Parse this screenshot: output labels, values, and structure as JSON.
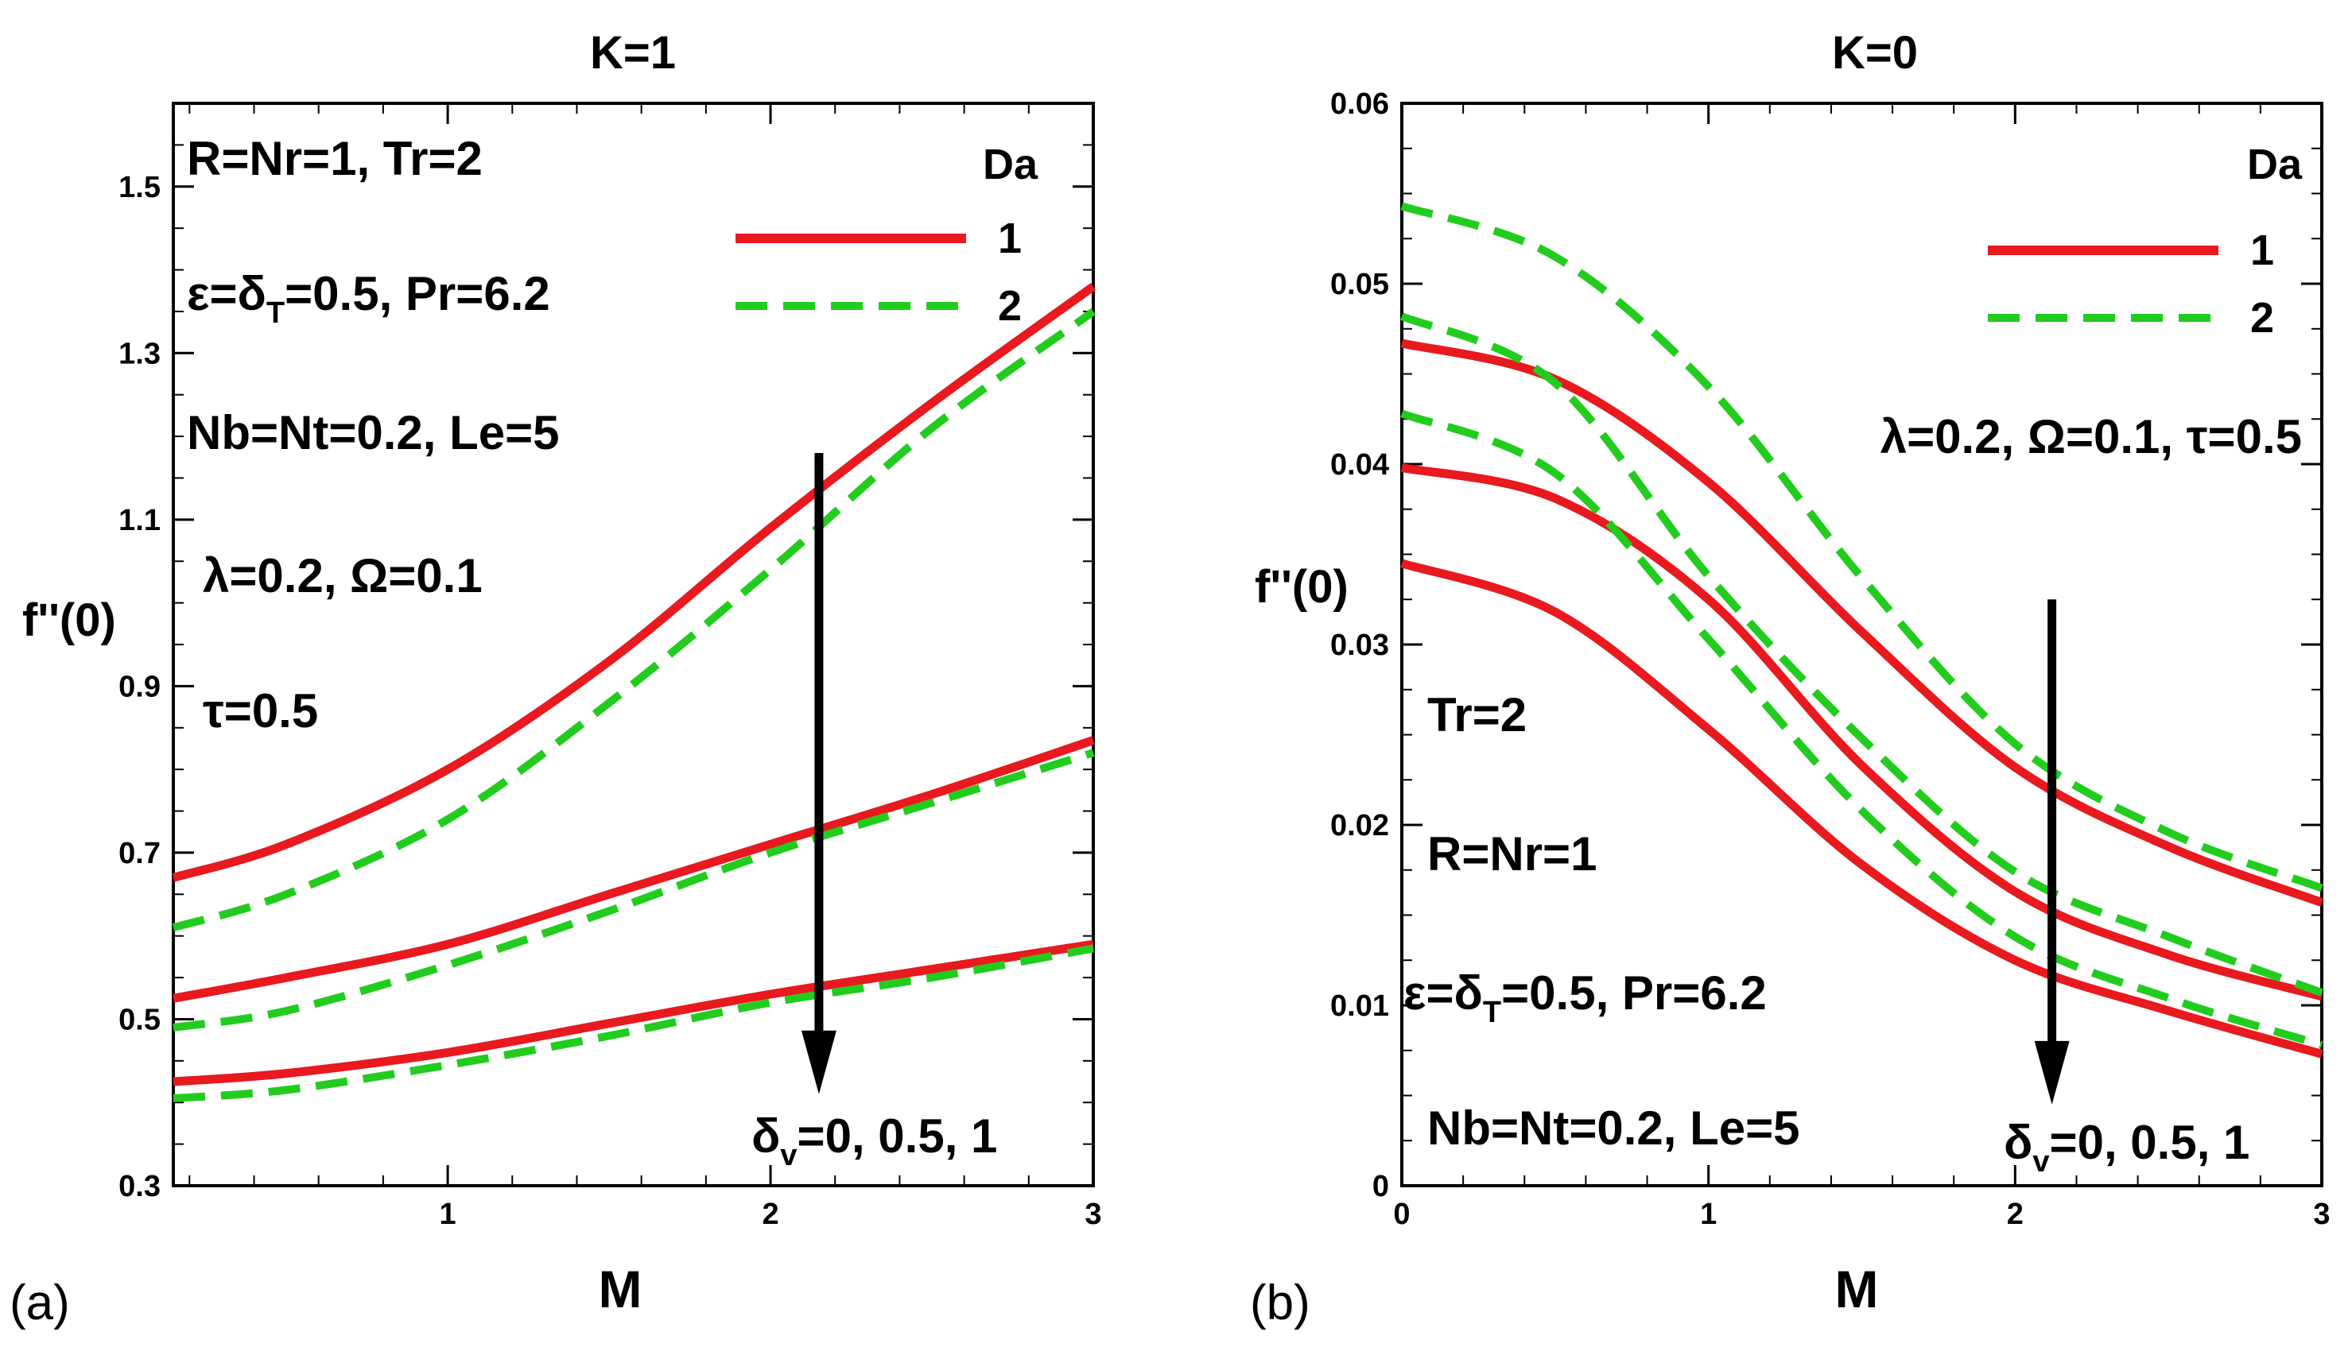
{
  "chart_data": [
    {
      "id": "a",
      "type": "line",
      "panel_label": "(a)",
      "title": "K=1",
      "xlabel": "M",
      "ylabel": "f''(0)",
      "xlim": [
        0.15,
        3
      ],
      "ylim": [
        0.3,
        1.6
      ],
      "xticks": [
        1,
        2,
        3
      ],
      "yticks": [
        0.3,
        0.5,
        0.7,
        0.9,
        1.1,
        1.3,
        1.5
      ],
      "ytick_labels": [
        "0.3",
        "0.5",
        "0.7",
        "0.9",
        "1.1",
        "1.3",
        "1.5"
      ],
      "legend_title": "Da",
      "legend_position": "top-right",
      "series": [
        {
          "name": "1",
          "color": "#e8191f",
          "dash": "solid",
          "group": "δv=0",
          "x": [
            0.15,
            0.5,
            1,
            1.5,
            2,
            2.5,
            3
          ],
          "y": [
            0.67,
            0.71,
            0.8,
            0.93,
            1.09,
            1.24,
            1.38
          ]
        },
        {
          "name": "2",
          "color": "#22cc1e",
          "dash": "dashed",
          "group": "δv=0",
          "x": [
            0.15,
            0.5,
            1,
            1.5,
            2,
            2.5,
            3
          ],
          "y": [
            0.61,
            0.65,
            0.74,
            0.88,
            1.04,
            1.21,
            1.35
          ]
        },
        {
          "name": "1",
          "color": "#e8191f",
          "dash": "solid",
          "group": "δv=0.5",
          "x": [
            0.15,
            0.5,
            1,
            1.5,
            2,
            2.5,
            3
          ],
          "y": [
            0.525,
            0.55,
            0.59,
            0.65,
            0.71,
            0.77,
            0.835
          ]
        },
        {
          "name": "2",
          "color": "#22cc1e",
          "dash": "dashed",
          "group": "δv=0.5",
          "x": [
            0.15,
            0.5,
            1,
            1.5,
            2,
            2.5,
            3
          ],
          "y": [
            0.49,
            0.51,
            0.565,
            0.63,
            0.7,
            0.76,
            0.82
          ]
        },
        {
          "name": "1",
          "color": "#e8191f",
          "dash": "solid",
          "group": "δv=1",
          "x": [
            0.15,
            0.5,
            1,
            1.5,
            2,
            2.5,
            3
          ],
          "y": [
            0.425,
            0.435,
            0.46,
            0.495,
            0.53,
            0.56,
            0.59
          ]
        },
        {
          "name": "2",
          "color": "#22cc1e",
          "dash": "dashed",
          "group": "δv=1",
          "x": [
            0.15,
            0.5,
            1,
            1.5,
            2,
            2.5,
            3
          ],
          "y": [
            0.405,
            0.415,
            0.445,
            0.48,
            0.52,
            0.55,
            0.585
          ]
        }
      ],
      "annotations": {
        "line1": "R=Nr=1, Tr=2",
        "line2_pre": "ε=δ",
        "line2_sub": "T",
        "line2_post": "=0.5, Pr=6.2",
        "line3": "Nb=Nt=0.2, Le=5",
        "line4": "λ=0.2, Ω=0.1",
        "line5": "τ=0.5",
        "arrow_pre": "δ",
        "arrow_sub": "v",
        "arrow_post": "=0, 0.5, 1"
      },
      "arrow": {
        "x": 2.15,
        "y_from": 1.18,
        "y_to": 0.41
      }
    },
    {
      "id": "b",
      "type": "line",
      "panel_label": "(b)",
      "title": "K=0",
      "xlabel": "M",
      "ylabel": "f''(0)",
      "xlim": [
        0,
        3
      ],
      "ylim": [
        0,
        0.06
      ],
      "xticks": [
        0,
        1,
        2,
        3
      ],
      "yticks": [
        0,
        0.01,
        0.02,
        0.03,
        0.04,
        0.05,
        0.06
      ],
      "ytick_labels": [
        "0",
        "0.01",
        "0.02",
        "0.03",
        "0.04",
        "0.05",
        "0.06"
      ],
      "legend_title": "Da",
      "legend_position": "top-right",
      "series": [
        {
          "name": "1",
          "color": "#e8191f",
          "dash": "solid",
          "group": "δv=0",
          "x": [
            0,
            0.5,
            1,
            1.5,
            2,
            2.5,
            3
          ],
          "y": [
            0.0467,
            0.0447,
            0.039,
            0.0307,
            0.0232,
            0.0188,
            0.0157
          ]
        },
        {
          "name": "2",
          "color": "#22cc1e",
          "dash": "dashed",
          "group": "δv=0",
          "x": [
            0,
            0.5,
            1,
            1.5,
            2,
            2.5,
            3
          ],
          "y": [
            0.0543,
            0.0515,
            0.0443,
            0.0337,
            0.0245,
            0.0196,
            0.0165
          ]
        },
        {
          "name": "1",
          "color": "#e8191f",
          "dash": "solid",
          "group": "δv=0.5",
          "x": [
            0,
            0.5,
            1,
            1.5,
            2,
            2.5,
            3
          ],
          "y": [
            0.0398,
            0.0381,
            0.0325,
            0.0233,
            0.0163,
            0.0128,
            0.0105
          ]
        },
        {
          "name": "2",
          "color": "#22cc1e",
          "dash": "dashed",
          "group": "δv=0.5",
          "x": [
            0,
            0.5,
            1,
            1.5,
            2,
            2.5,
            3
          ],
          "y": [
            0.0482,
            0.0445,
            0.0338,
            0.0248,
            0.0174,
            0.0138,
            0.0107
          ]
        },
        {
          "name": "1",
          "color": "#e8191f",
          "dash": "solid",
          "group": "δv=1",
          "x": [
            0,
            0.5,
            1,
            1.5,
            2,
            2.5,
            3
          ],
          "y": [
            0.0345,
            0.0318,
            0.0253,
            0.0178,
            0.0125,
            0.0097,
            0.0073
          ]
        },
        {
          "name": "2",
          "color": "#22cc1e",
          "dash": "dashed",
          "group": "δv=1",
          "x": [
            0,
            0.5,
            1,
            1.5,
            2,
            2.5,
            3
          ],
          "y": [
            0.0428,
            0.0395,
            0.0303,
            0.0208,
            0.0138,
            0.0104,
            0.0078
          ]
        }
      ],
      "annotations": {
        "line1": "λ=0.2, Ω=0.1, τ=0.5",
        "line2": "Tr=2",
        "line3": "R=Nr=1",
        "line4_pre": "ε=δ",
        "line4_sub": "T",
        "line4_post": "=0.5, Pr=6.2",
        "line5": "Nb=Nt=0.2, Le=5",
        "arrow_pre": "δ",
        "arrow_sub": "v",
        "arrow_post": "=0, 0.5, 1"
      },
      "arrow": {
        "x": 2.12,
        "y_from": 0.0325,
        "y_to": 0.0045
      }
    }
  ]
}
